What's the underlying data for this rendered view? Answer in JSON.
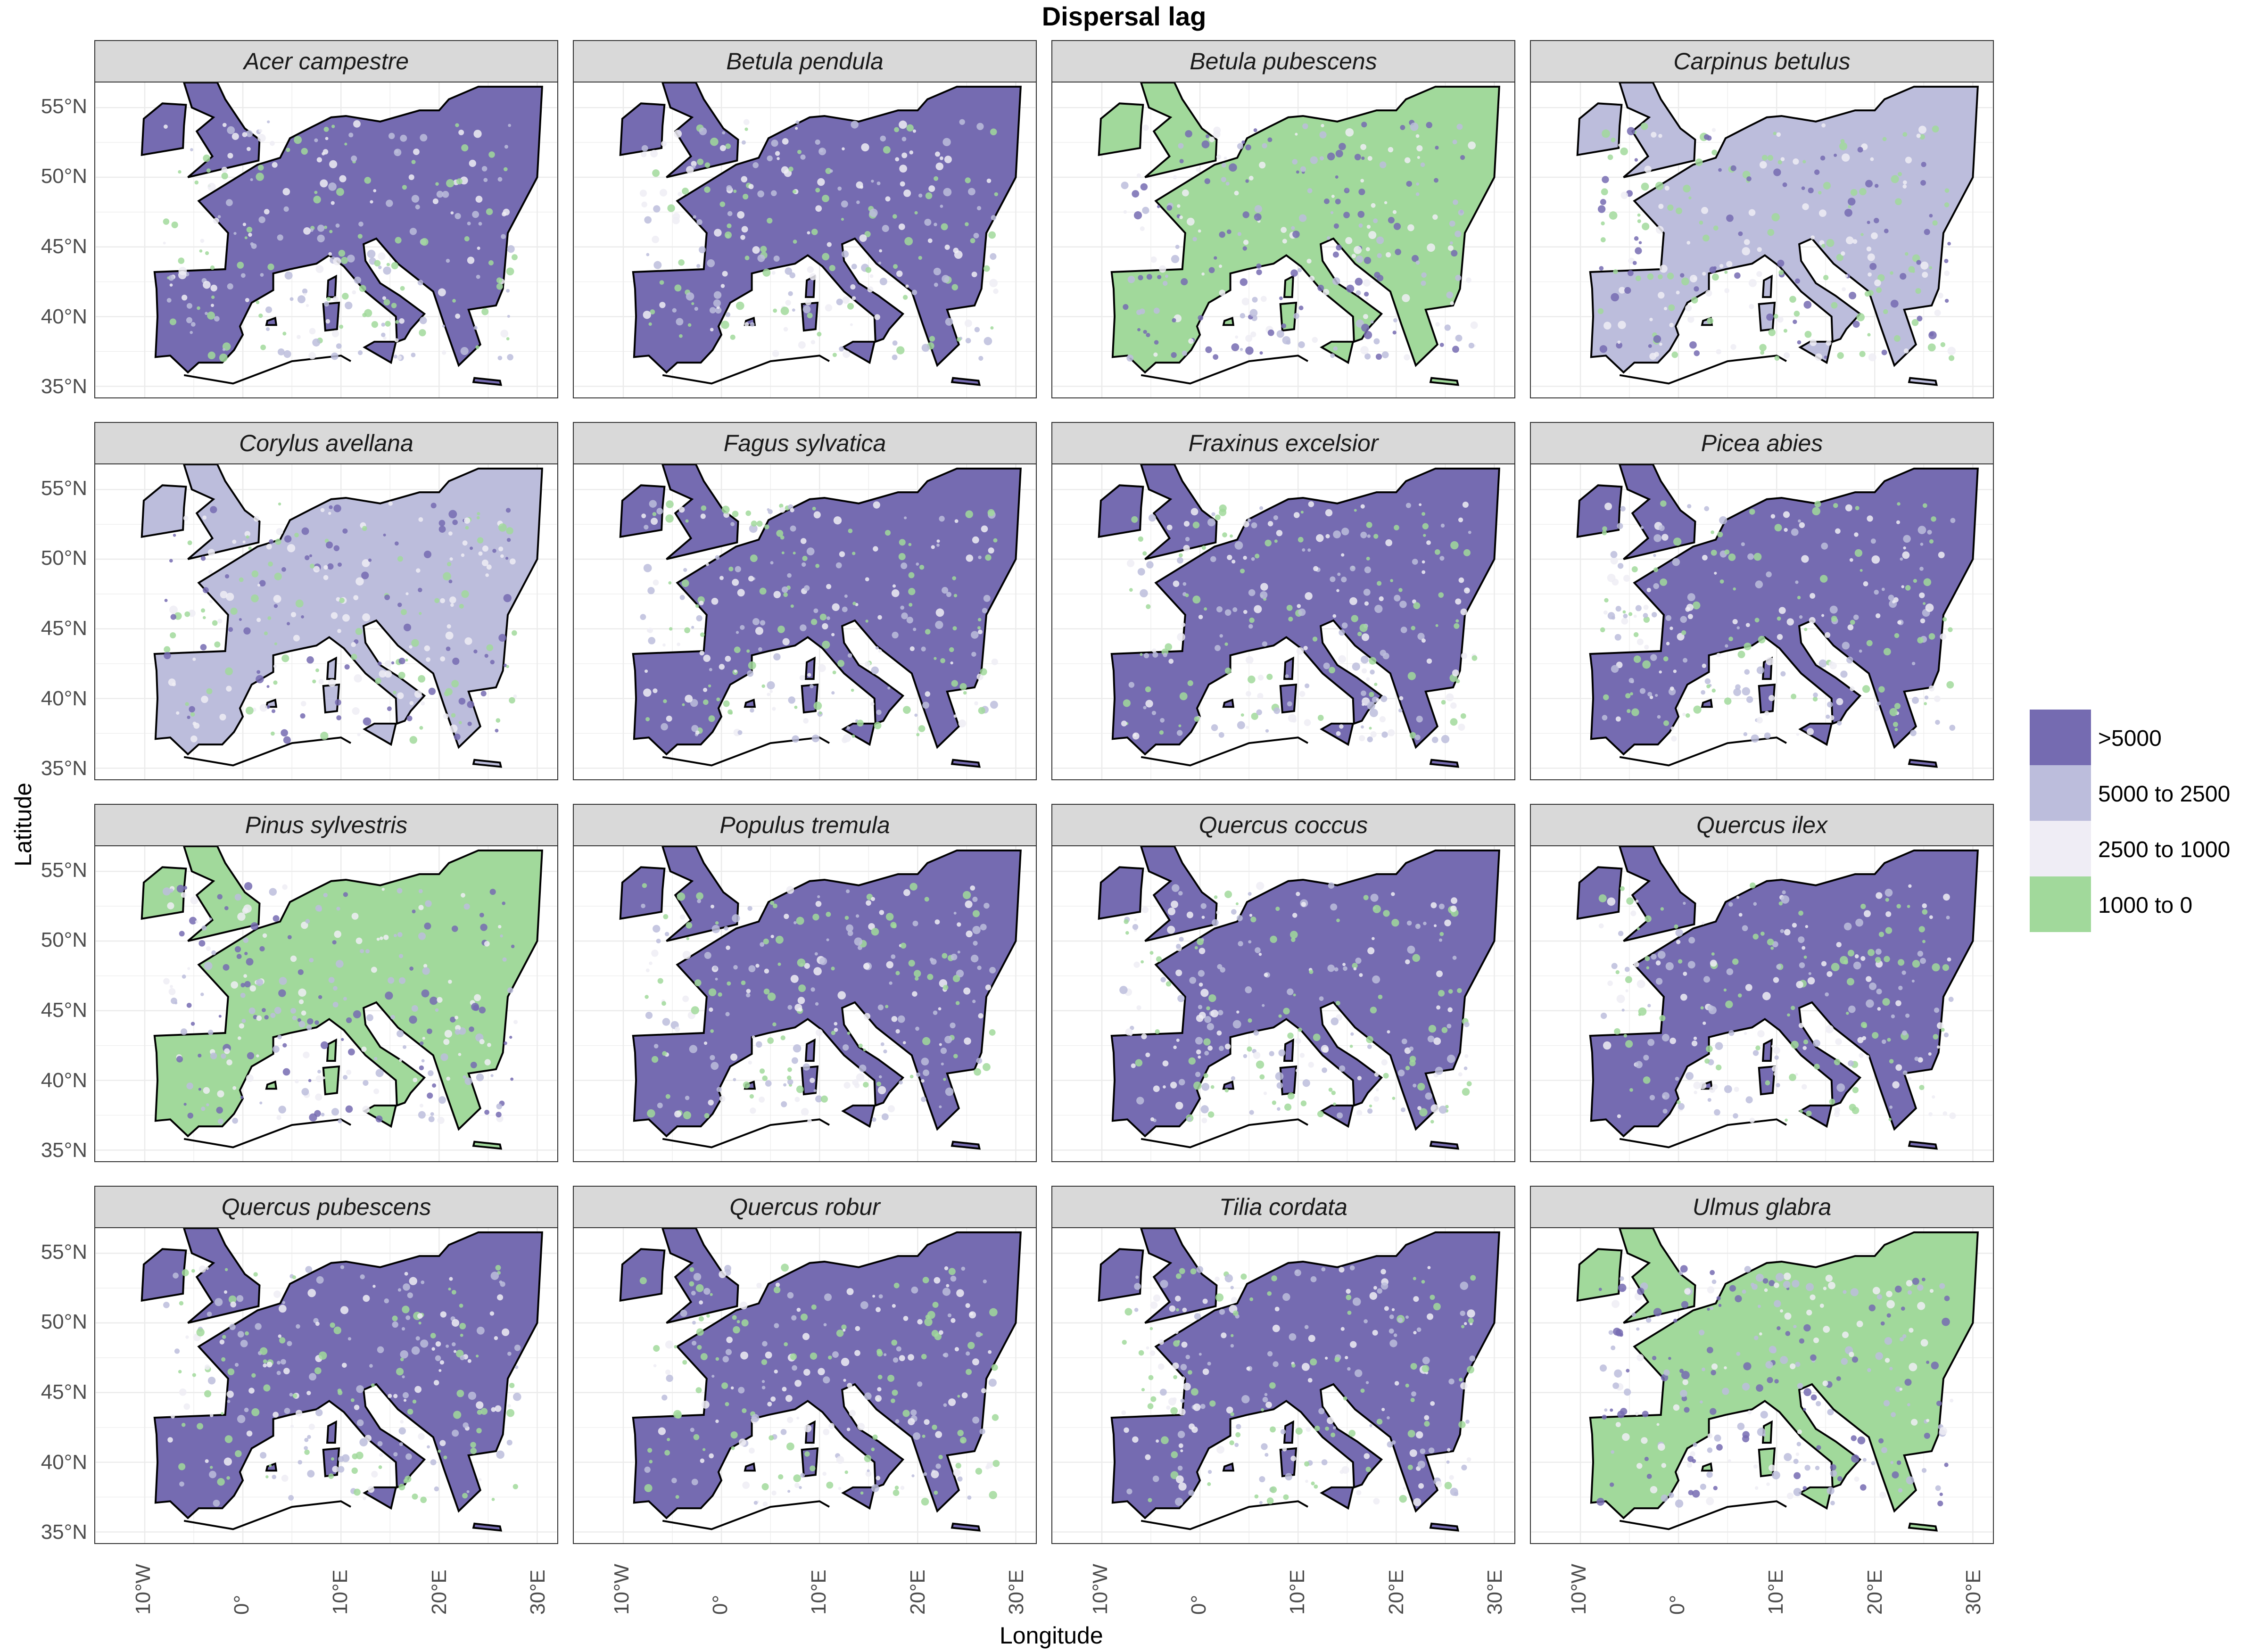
{
  "title": "Dispersal lag",
  "axes": {
    "xlabel": "Longitude",
    "ylabel": "Latitude",
    "x_ticks": [
      "10°W",
      "0°",
      "10°E",
      "20°E",
      "30°E"
    ],
    "y_ticks": [
      "55°N",
      "50°N",
      "45°N",
      "40°N",
      "35°N"
    ]
  },
  "legend": {
    "items": [
      {
        "label": ">5000",
        "color": "#756bb1"
      },
      {
        "label": "5000 to 2500",
        "color": "#bcbddc"
      },
      {
        "label": "2500 to 1000",
        "color": "#efedf5"
      },
      {
        "label": "1000 to 0",
        "color": "#a1d99b"
      }
    ]
  },
  "panels": [
    {
      "species": "Acer campestre",
      "dominant": ">5000"
    },
    {
      "species": "Betula pendula",
      "dominant": ">5000"
    },
    {
      "species": "Betula pubescens",
      "dominant": "1000 to 0"
    },
    {
      "species": "Carpinus betulus",
      "dominant": "5000 to 2500"
    },
    {
      "species": "Corylus avellana",
      "dominant": "5000 to 2500"
    },
    {
      "species": "Fagus sylvatica",
      "dominant": ">5000"
    },
    {
      "species": "Fraxinus excelsior",
      "dominant": ">5000"
    },
    {
      "species": "Picea abies",
      "dominant": ">5000"
    },
    {
      "species": "Pinus sylvestris",
      "dominant": "1000 to 0"
    },
    {
      "species": "Populus tremula",
      "dominant": ">5000"
    },
    {
      "species": "Quercus coccus",
      "dominant": ">5000"
    },
    {
      "species": "Quercus ilex",
      "dominant": ">5000"
    },
    {
      "species": "Quercus pubescens",
      "dominant": ">5000"
    },
    {
      "species": "Quercus robur",
      "dominant": ">5000"
    },
    {
      "species": "Tilia cordata",
      "dominant": ">5000"
    },
    {
      "species": "Ulmus glabra",
      "dominant": "1000 to 0"
    }
  ]
}
